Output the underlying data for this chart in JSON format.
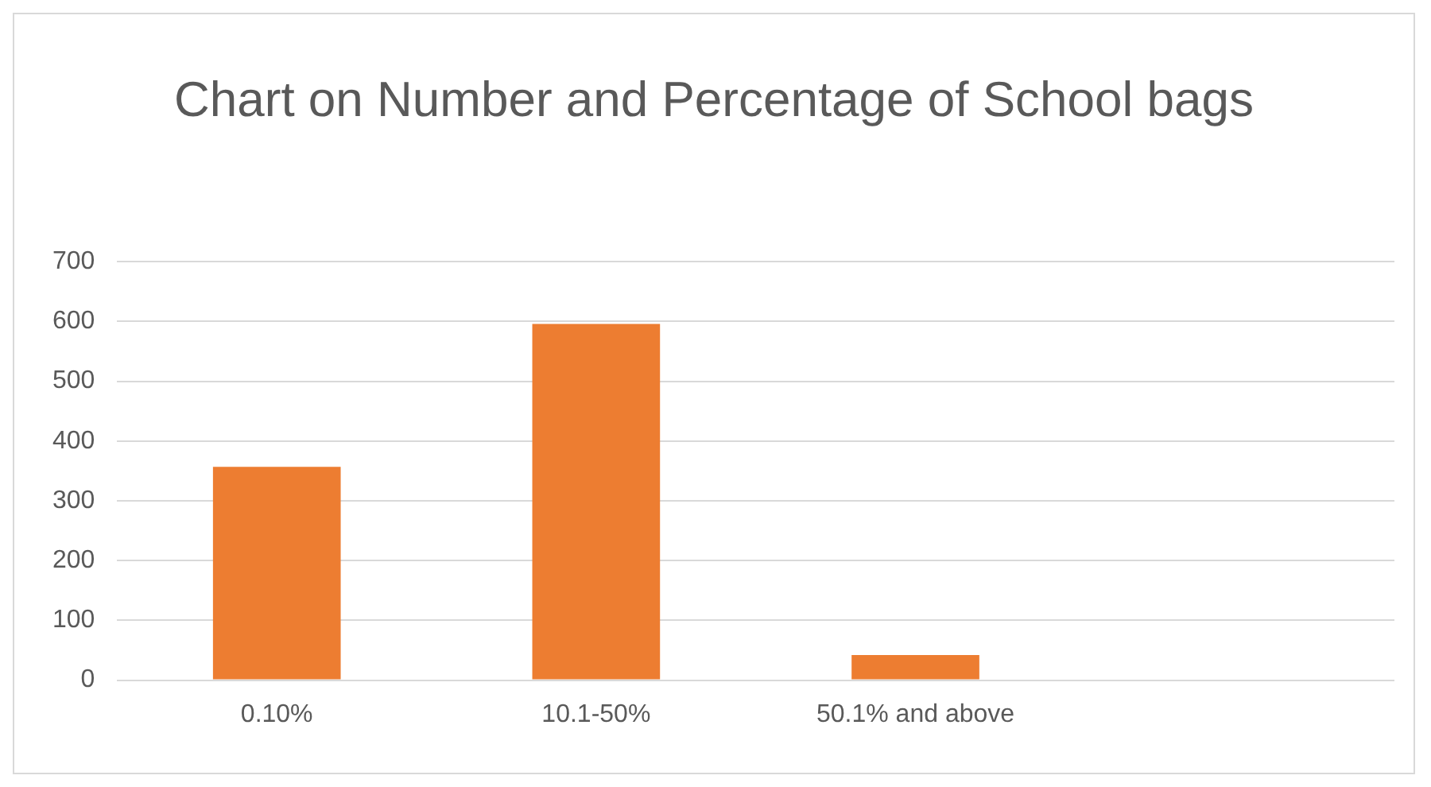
{
  "chart_data": {
    "type": "bar",
    "title": "Chart on Number and Percentage of School bags",
    "categories": [
      "0.10%",
      "10.1-50%",
      "50.1% and above",
      null
    ],
    "values": [
      357,
      596,
      42,
      null
    ],
    "color": "#ed7d31",
    "ylim": [
      0,
      700
    ],
    "yticks": [
      0,
      100,
      200,
      300,
      400,
      500,
      600,
      700
    ],
    "grid": "y",
    "legend": false
  }
}
